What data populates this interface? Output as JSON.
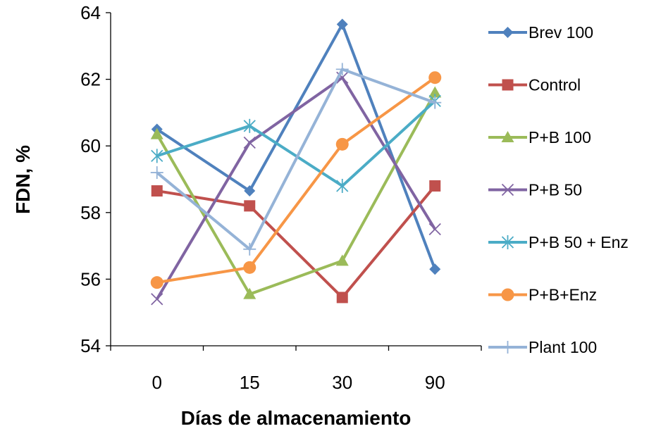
{
  "chart_data": {
    "type": "line",
    "title": "",
    "xlabel": "Días de almacenamiento",
    "ylabel": "FDN, %",
    "categories": [
      "0",
      "15",
      "30",
      "90"
    ],
    "ylim": [
      54,
      64
    ],
    "yticks": [
      54,
      56,
      58,
      60,
      62,
      64
    ],
    "grid": false,
    "legend_position": "right",
    "series": [
      {
        "name": "Brev 100",
        "values": [
          60.5,
          58.65,
          63.65,
          56.3
        ],
        "color": "#4F81BD",
        "marker": "diamond"
      },
      {
        "name": "Control",
        "values": [
          58.65,
          58.2,
          55.45,
          58.8
        ],
        "color": "#C0504D",
        "marker": "square"
      },
      {
        "name": "P+B 100",
        "values": [
          60.35,
          55.55,
          56.55,
          61.6
        ],
        "color": "#9BBB59",
        "marker": "triangle"
      },
      {
        "name": "P+B 50",
        "values": [
          55.4,
          60.1,
          62.05,
          57.5
        ],
        "color": "#8064A2",
        "marker": "x"
      },
      {
        "name": "P+B 50 + Enz",
        "values": [
          59.7,
          60.6,
          58.8,
          61.35
        ],
        "color": "#4BACC6",
        "marker": "star"
      },
      {
        "name": "P+B+Enz",
        "values": [
          55.9,
          56.35,
          60.05,
          62.05
        ],
        "color": "#F79646",
        "marker": "circle"
      },
      {
        "name": "Plant 100",
        "values": [
          59.2,
          56.9,
          62.3,
          61.3
        ],
        "color": "#95B3D7",
        "marker": "plus"
      }
    ]
  }
}
